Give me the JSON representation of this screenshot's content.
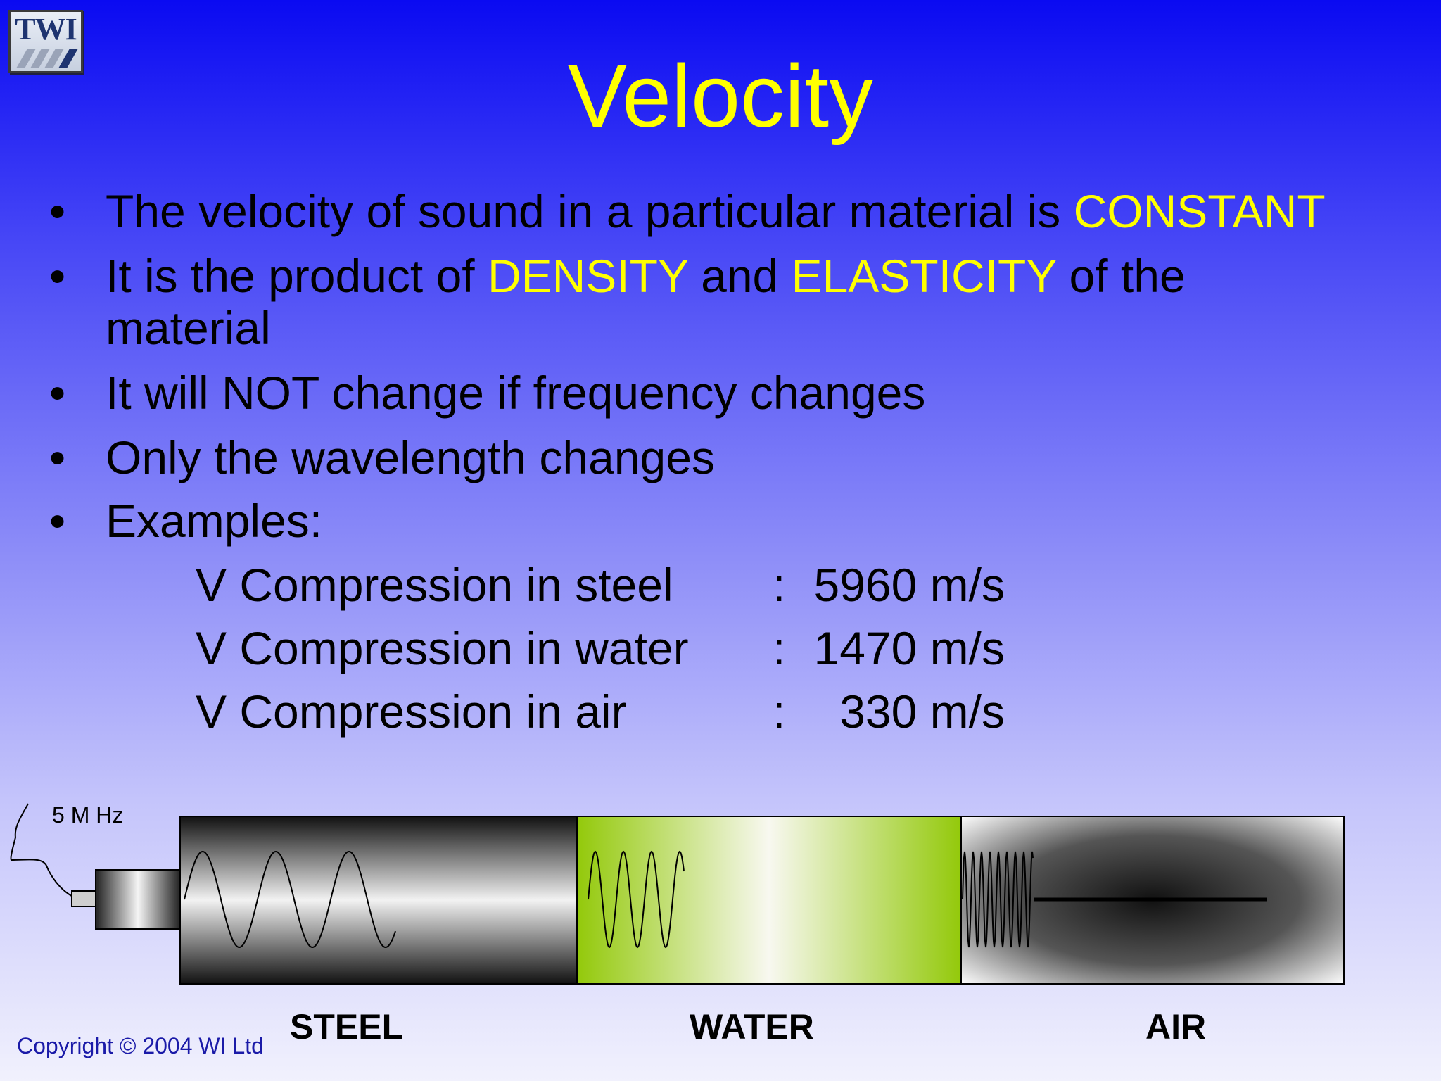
{
  "logo": {
    "text": "TWI"
  },
  "title": "Velocity",
  "bullets": [
    {
      "parts": [
        {
          "text": "The velocity of sound in a particular material is ",
          "hl": false
        },
        {
          "text": "CONSTANT",
          "hl": true
        }
      ]
    },
    {
      "parts": [
        {
          "text": "It is the product of ",
          "hl": false
        },
        {
          "text": "DENSITY",
          "hl": true
        },
        {
          "text": " and ",
          "hl": false
        },
        {
          "text": "ELASTICITY",
          "hl": true
        },
        {
          "text": " of the",
          "hl": false
        }
      ],
      "continuation": "material"
    },
    {
      "parts": [
        {
          "text": "It will NOT change if frequency changes",
          "hl": false
        }
      ]
    },
    {
      "parts": [
        {
          "text": "Only the wavelength changes",
          "hl": false
        }
      ]
    },
    {
      "parts": [
        {
          "text": "Examples:",
          "hl": false
        }
      ]
    }
  ],
  "bullet_char": "•",
  "examples": [
    {
      "label": "V Compression in steel",
      "colon": ":",
      "value": "5960 m/s"
    },
    {
      "label": "V Compression in water",
      "colon": ":",
      "value": "1470 m/s"
    },
    {
      "label": "V Compression in air",
      "colon": ":",
      "value": "330 m/s"
    }
  ],
  "diagram": {
    "frequency_label": "5 M Hz",
    "materials": [
      "STEEL",
      "WATER",
      "AIR"
    ],
    "colors": {
      "steel_dark": "#1a1a1a",
      "steel_light": "#f0f0f0",
      "water_green": "#99cc00",
      "water_light": "#f7f7f0",
      "air_dark": "#202020",
      "air_light": "#f5f5f5"
    }
  },
  "copyright": "Copyright © 2004 WI Ltd"
}
